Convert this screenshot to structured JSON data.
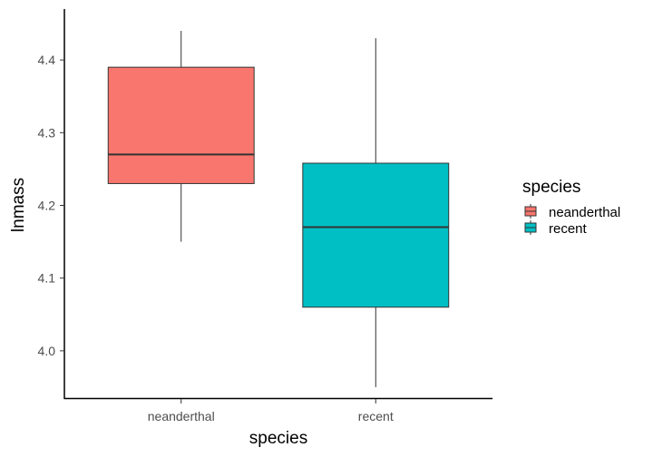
{
  "chart_data": {
    "type": "box",
    "title": "",
    "xlabel": "species",
    "ylabel": "lnmass",
    "ylim": [
      3.935,
      4.47
    ],
    "yticks": [
      4.0,
      4.1,
      4.2,
      4.3,
      4.4
    ],
    "ytick_labels": [
      "4.0",
      "4.1",
      "4.2",
      "4.3",
      "4.4"
    ],
    "categories": [
      "neanderthal",
      "recent"
    ],
    "grid": false,
    "boxes": [
      {
        "category": "neanderthal",
        "min": 4.15,
        "q1": 4.23,
        "median": 4.27,
        "q3": 4.39,
        "max": 4.44,
        "color": "#F8766D"
      },
      {
        "category": "recent",
        "min": 3.95,
        "q1": 4.06,
        "median": 4.17,
        "q3": 4.258,
        "max": 4.43,
        "color": "#00BFC4"
      }
    ],
    "legend": {
      "title": "species",
      "position": "right",
      "entries": [
        {
          "label": "neanderthal",
          "color": "#F8766D"
        },
        {
          "label": "recent",
          "color": "#00BFC4"
        }
      ]
    }
  }
}
